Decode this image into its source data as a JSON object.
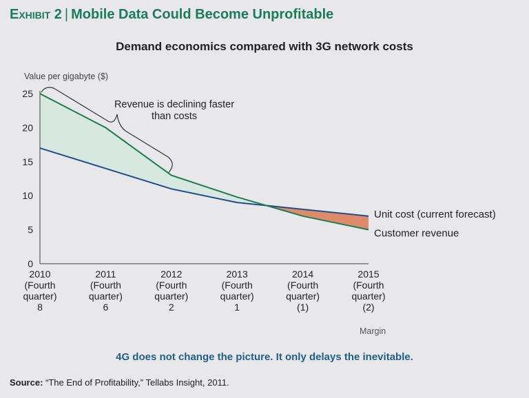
{
  "exhibit": {
    "label": "Exhibit 2",
    "separator": "|",
    "title": "Mobile Data Could Become Unprofitable"
  },
  "colors": {
    "title_green": "#1a7d5a",
    "revenue_line": "#1b7d50",
    "cost_line": "#1f4f8b",
    "positive_fill": "#d6e8e0",
    "negative_fill": "#e08a6c",
    "takeaway_blue": "#1f5f8b"
  },
  "footer": {
    "margin_label": "Margin",
    "takeaway": "4G does not change the picture. It only delays the inevitable.",
    "source_label": "Source:",
    "source_text": "“The End of Profitability,” Tellabs Insight, 2011."
  },
  "chart_data": {
    "type": "line",
    "title": "Demand economics compared with 3G network costs",
    "ylabel": "Value per gigabyte ($)",
    "xlabel": "",
    "ylim": [
      0,
      25
    ],
    "yticks": [
      0,
      5,
      10,
      15,
      20,
      25
    ],
    "grid": false,
    "categories": [
      "2010",
      "2011",
      "2012",
      "2013",
      "2014",
      "2015"
    ],
    "category_sublabels": [
      [
        "(Fourth",
        "quarter)",
        "8"
      ],
      [
        "(Fourth",
        "quarter)",
        "6"
      ],
      [
        "(Fourth",
        "quarter)",
        "2"
      ],
      [
        "(Fourth",
        "quarter)",
        "1"
      ],
      [
        "(Fourth",
        "quarter)",
        "(1)"
      ],
      [
        "(Fourth",
        "quarter)",
        "(2)"
      ]
    ],
    "margin_values": [
      8,
      6,
      2,
      1,
      -1,
      -2
    ],
    "series": [
      {
        "name": "Unit cost (current forecast)",
        "values": [
          17,
          14,
          11,
          9,
          8,
          7
        ]
      },
      {
        "name": "Customer revenue",
        "values": [
          25,
          20,
          13,
          9.8,
          7,
          5
        ]
      }
    ],
    "legend_placement": "right (inline labels at line ends)",
    "annotations": [
      {
        "text_lines": [
          "Revenue is declining faster",
          "than costs"
        ],
        "spans": [
          "2010",
          "2012"
        ]
      }
    ]
  }
}
